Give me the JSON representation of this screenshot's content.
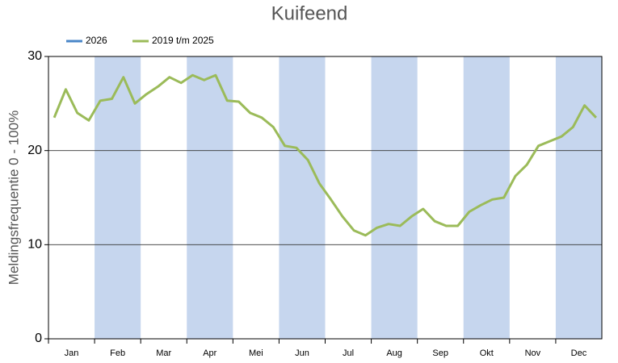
{
  "chart_data": {
    "type": "line",
    "title": "Kuifeend",
    "ylabel": "Meldingsfrequentie 0 - 100%",
    "categories": [
      "Jan",
      "Feb",
      "Mar",
      "Apr",
      "Mei",
      "Jun",
      "Jul",
      "Aug",
      "Sep",
      "Okt",
      "Nov",
      "Dec"
    ],
    "series": [
      {
        "name": "2026",
        "color": "#4a86c8",
        "values": [
          null,
          null,
          null,
          null,
          null,
          null,
          null,
          null,
          null,
          null,
          null,
          null
        ]
      },
      {
        "name": "2019 t/m 2025",
        "color": "#9bbb59",
        "values": [
          [
            23.5,
            26.5,
            24,
            23.2
          ],
          [
            25.3,
            25.5,
            27.8,
            25
          ],
          [
            26,
            26.8,
            27.8,
            27.2
          ],
          [
            28,
            27.5,
            28,
            25.3
          ],
          [
            25.2,
            24,
            23.5,
            22.5
          ],
          [
            20.5,
            20.3,
            19,
            16.5
          ],
          [
            14.8,
            13,
            11.5,
            11
          ],
          [
            11.8,
            12.2,
            12,
            13
          ],
          [
            13.8,
            12.5,
            12,
            12
          ],
          [
            13.5,
            14.2,
            14.8,
            15
          ],
          [
            17.3,
            18.5,
            20.5,
            21
          ],
          [
            21.5,
            22.5,
            24.8,
            23.5
          ]
        ]
      }
    ],
    "ylim": [
      0,
      30
    ],
    "yticks": [
      0,
      10,
      20,
      30
    ],
    "grid": true,
    "legend": "top-left"
  }
}
